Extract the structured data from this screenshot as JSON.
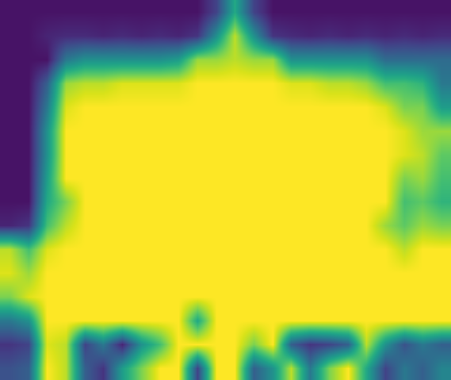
{
  "chart_data": {
    "type": "heatmap",
    "x": [
      0,
      1,
      2,
      3,
      4,
      5,
      6,
      7,
      8,
      9,
      10,
      11,
      12,
      13,
      14,
      15,
      16,
      17,
      18,
      19,
      20,
      21,
      22,
      23
    ],
    "y": [
      0,
      1,
      2,
      3,
      4,
      5,
      6,
      7,
      8,
      9,
      10,
      11,
      12,
      13,
      14,
      15
    ],
    "xlim": [
      -0.5,
      23.5
    ],
    "ylim": [
      15.5,
      -0.5
    ],
    "z": [
      [
        0.05,
        0.05,
        0.05,
        0.05,
        0.05,
        0.05,
        0.05,
        0.05,
        0.05,
        0.05,
        0.05,
        0.2,
        0.6,
        0.2,
        0.05,
        0.05,
        0.05,
        0.05,
        0.05,
        0.05,
        0.05,
        0.05,
        0.05,
        0.05
      ],
      [
        0.05,
        0.05,
        0.1,
        0.12,
        0.12,
        0.1,
        0.12,
        0.1,
        0.12,
        0.1,
        0.15,
        0.5,
        0.9,
        0.5,
        0.15,
        0.12,
        0.1,
        0.12,
        0.1,
        0.12,
        0.1,
        0.12,
        0.1,
        0.12
      ],
      [
        0.05,
        0.05,
        0.05,
        0.4,
        0.5,
        0.5,
        0.5,
        0.5,
        0.5,
        0.55,
        0.85,
        0.85,
        0.9,
        0.85,
        0.85,
        0.5,
        0.5,
        0.5,
        0.5,
        0.5,
        0.35,
        0.35,
        0.35,
        0.35
      ],
      [
        0.05,
        0.05,
        0.3,
        0.85,
        0.9,
        0.9,
        0.95,
        0.95,
        0.95,
        0.95,
        1,
        1,
        1,
        1,
        1,
        0.95,
        0.95,
        0.9,
        0.9,
        0.85,
        0.7,
        0.7,
        0.65,
        0.4
      ],
      [
        0.05,
        0.05,
        0.4,
        0.95,
        1,
        1,
        1,
        1,
        1,
        1,
        1,
        1,
        1,
        1,
        1,
        1,
        1,
        1,
        1,
        1,
        0.95,
        0.8,
        0.8,
        0.55
      ],
      [
        0.05,
        0.05,
        0.5,
        1,
        1,
        1,
        1,
        1,
        1,
        1,
        1,
        1,
        1,
        1,
        1,
        1,
        1,
        1,
        1,
        1,
        1,
        0.95,
        0.85,
        0.85
      ],
      [
        0.05,
        0.05,
        0.5,
        1,
        1,
        1,
        1,
        1,
        1,
        1,
        1,
        1,
        1,
        1,
        1,
        1,
        1,
        1,
        1,
        1,
        1,
        0.95,
        0.9,
        0.75
      ],
      [
        0.05,
        0.05,
        0.55,
        1,
        1,
        1,
        1,
        1,
        1,
        1,
        1,
        1,
        1,
        1,
        1,
        1,
        1,
        1,
        1,
        1,
        1,
        0.8,
        0.85,
        0.7
      ],
      [
        0.05,
        0.05,
        0.6,
        0.8,
        1,
        1,
        1,
        1,
        1,
        1,
        1,
        1,
        1,
        1,
        1,
        1,
        1,
        1,
        1,
        1,
        1,
        0.7,
        0.75,
        0.65
      ],
      [
        0.1,
        0.15,
        0.7,
        0.9,
        1,
        1,
        1,
        1,
        1,
        1,
        1,
        1,
        1,
        1,
        1,
        1,
        1,
        1,
        1,
        1,
        0.85,
        0.75,
        0.85,
        0.8
      ],
      [
        0.9,
        0.7,
        0.95,
        1,
        1,
        1,
        1,
        1,
        1,
        1,
        1,
        1,
        1,
        1,
        1,
        1,
        1,
        1,
        1,
        1,
        1,
        0.9,
        1,
        1
      ],
      [
        0.95,
        0.85,
        1,
        1,
        1,
        1,
        1,
        1,
        1,
        1,
        1,
        1,
        1,
        1,
        1,
        1,
        1,
        1,
        1,
        1,
        1,
        1,
        1,
        1
      ],
      [
        0.8,
        0.95,
        1,
        1,
        1,
        1,
        1,
        1,
        1,
        1,
        1,
        1,
        1,
        1,
        1,
        1,
        1,
        1,
        1,
        1,
        1,
        1,
        1,
        1
      ],
      [
        0.4,
        0.5,
        1,
        1,
        1,
        1,
        1,
        1,
        1,
        1,
        0.6,
        1,
        1,
        1,
        1,
        1,
        1,
        1,
        1,
        1,
        1,
        1,
        1,
        1
      ],
      [
        0.15,
        0.2,
        0.95,
        0.9,
        0.2,
        0.4,
        0.1,
        0.5,
        0.7,
        1,
        1,
        1,
        1,
        0.8,
        1,
        0.3,
        0.15,
        0.2,
        0.3,
        0.9,
        0.5,
        0.25,
        0.4,
        0.3
      ],
      [
        0.25,
        0.3,
        1,
        0.9,
        0.3,
        0.15,
        0.55,
        0.8,
        1,
        1,
        0.2,
        1,
        1,
        0.3,
        0.5,
        0.9,
        0.4,
        0.8,
        1,
        0.6,
        0.2,
        0.4,
        0.3,
        0.45
      ]
    ],
    "zlim": [
      0,
      1
    ],
    "color": "Viridis",
    "tick_labels": false,
    "grid": false
  }
}
